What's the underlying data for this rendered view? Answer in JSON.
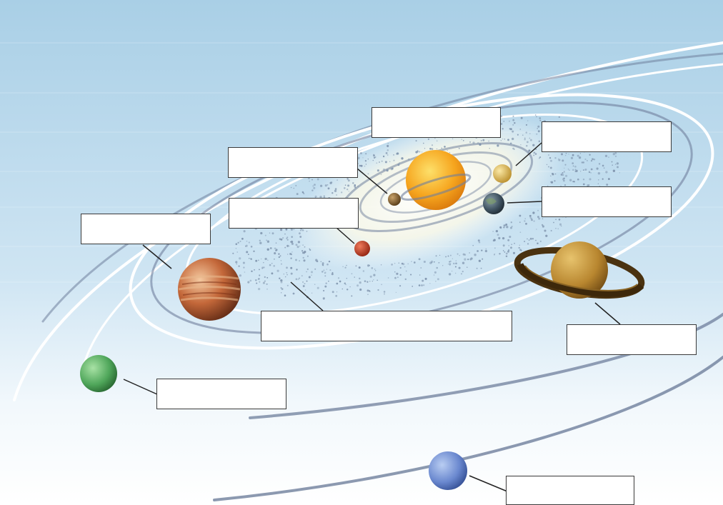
{
  "diagram": {
    "colors": {
      "sky_top": "#a9cfe6",
      "sky_bottom": "#e9f4fb",
      "orbit_light": "#ffffff",
      "orbit_dark": "#6f7f9c",
      "asteroid": "#7f94ad",
      "sun": "#f3a01c",
      "label_border": "#3a3a3a"
    },
    "bodies": [
      {
        "id": "sun",
        "icon": "sun-icon"
      },
      {
        "id": "small-planet-left",
        "icon": "planet-icon"
      },
      {
        "id": "small-planet-yellow",
        "icon": "planet-icon"
      },
      {
        "id": "small-planet-earthlike",
        "icon": "planet-icon"
      },
      {
        "id": "small-planet-red",
        "icon": "planet-icon"
      },
      {
        "id": "ringed-planet",
        "icon": "ringed-planet-icon"
      },
      {
        "id": "banded-planet",
        "icon": "planet-icon"
      },
      {
        "id": "green-planet",
        "icon": "planet-icon"
      },
      {
        "id": "blue-planet",
        "icon": "planet-icon"
      },
      {
        "id": "asteroid-belt",
        "icon": "asteroid-belt-icon"
      }
    ],
    "labels": [
      "",
      "",
      "",
      "",
      "",
      "",
      "",
      "",
      "",
      ""
    ]
  }
}
